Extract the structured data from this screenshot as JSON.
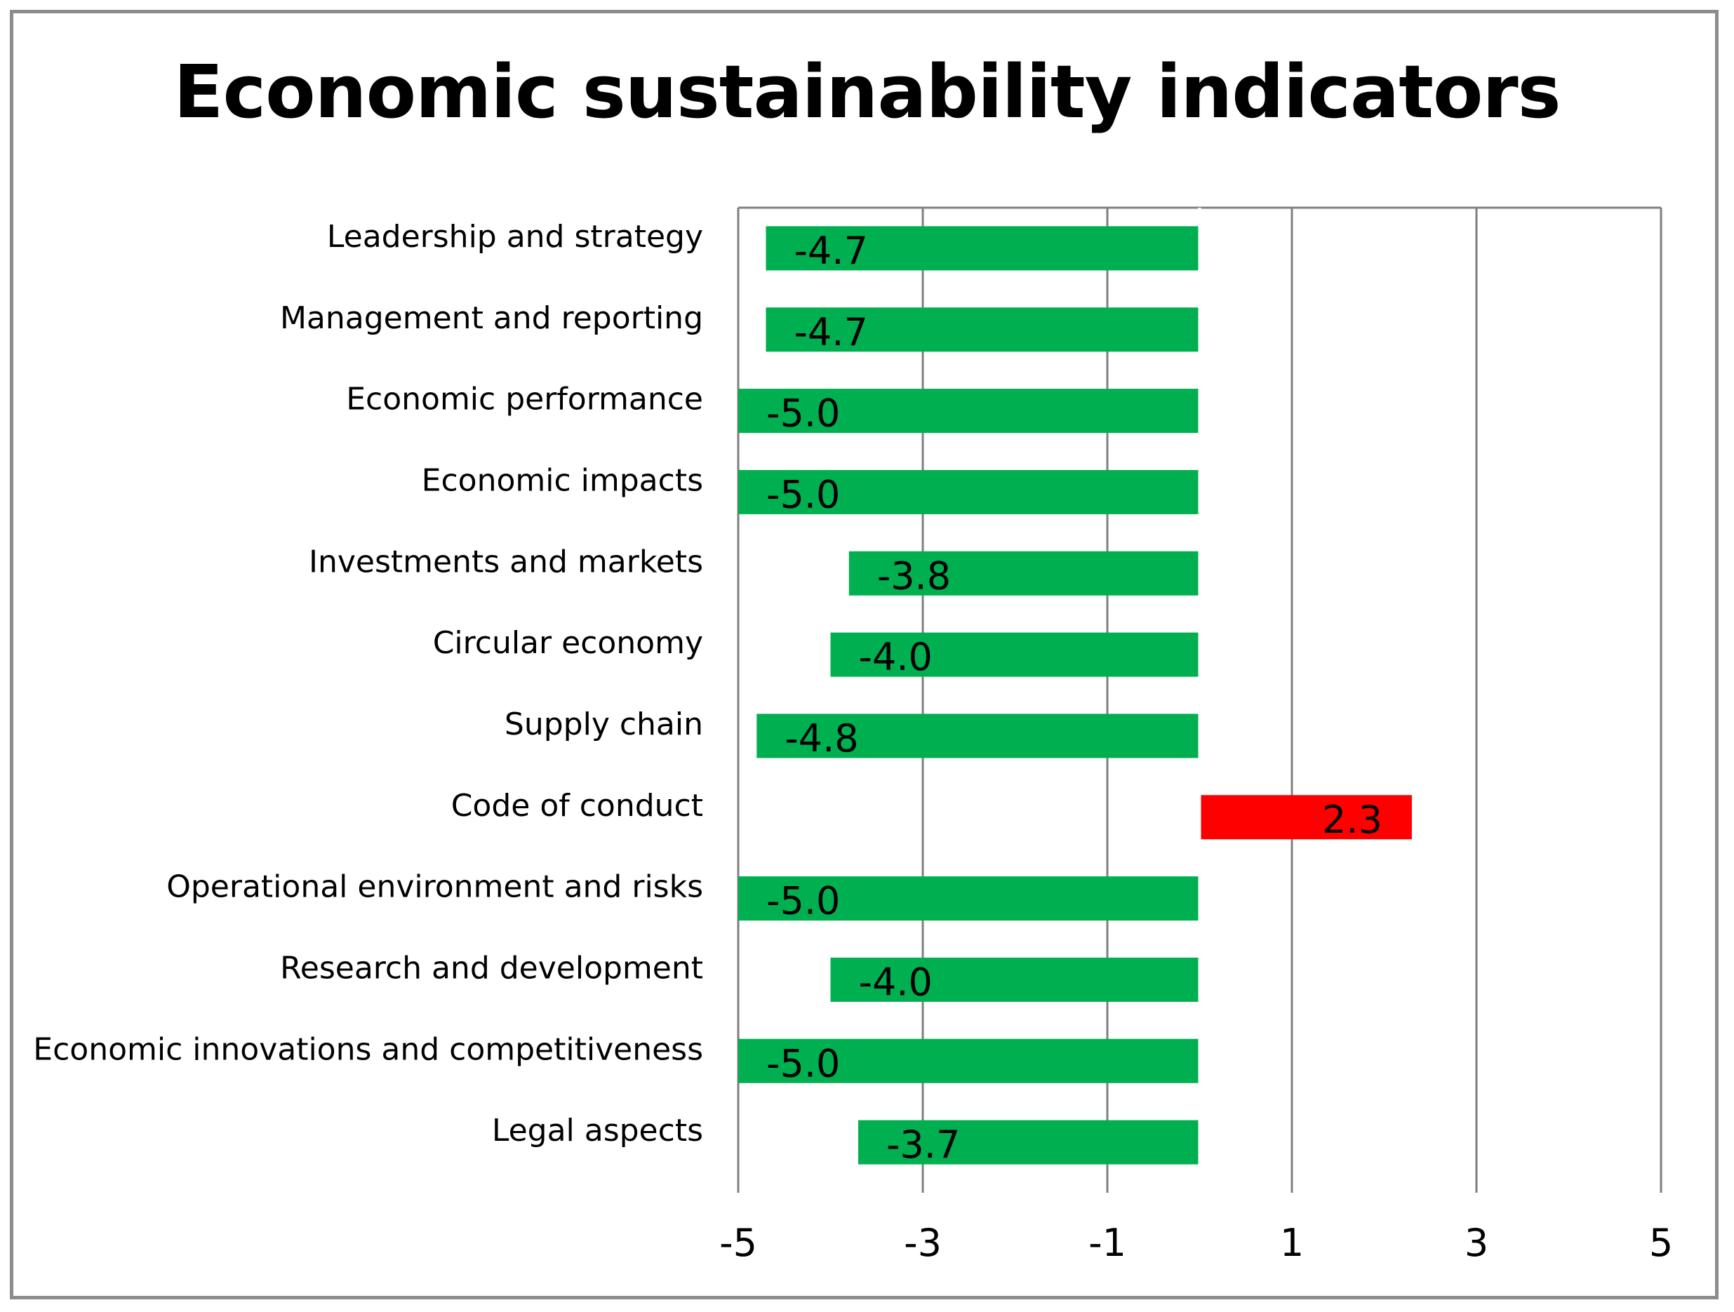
{
  "chart_data": {
    "type": "bar",
    "orientation": "horizontal",
    "title": "Economic sustainability indicators",
    "categories": [
      "Leadership and strategy",
      "Management and reporting",
      "Economic performance",
      "Economic impacts",
      "Investments and markets",
      "Circular economy",
      "Supply chain",
      "Code of conduct",
      "Operational environment and risks",
      "Research and development",
      "Economic innovations and competitiveness",
      "Legal aspects"
    ],
    "values": [
      -4.7,
      -4.7,
      -5.0,
      -5.0,
      -3.8,
      -4.0,
      -4.8,
      2.3,
      -5.0,
      -4.0,
      -5.0,
      -3.7
    ],
    "value_labels": [
      "-4.7",
      "-4.7",
      "-5.0",
      "-5.0",
      "-3.8",
      "-4.0",
      "-4.8",
      "2.3",
      "-5.0",
      "-4.0",
      "-5.0",
      "-3.7"
    ],
    "xlim": [
      -5,
      5
    ],
    "xticks": [
      -5,
      -3,
      -1,
      1,
      3,
      5
    ],
    "xtick_labels": [
      "-5",
      "-3",
      "-1",
      "1",
      "3",
      "5"
    ],
    "grid": true,
    "xlabel": "",
    "ylabel": "",
    "colors": {
      "negative": "#00b050",
      "positive": "#ff0000",
      "grid": "#7f7f7f",
      "axis": "#7f7f7f",
      "frame": "#8c8c8c"
    }
  }
}
